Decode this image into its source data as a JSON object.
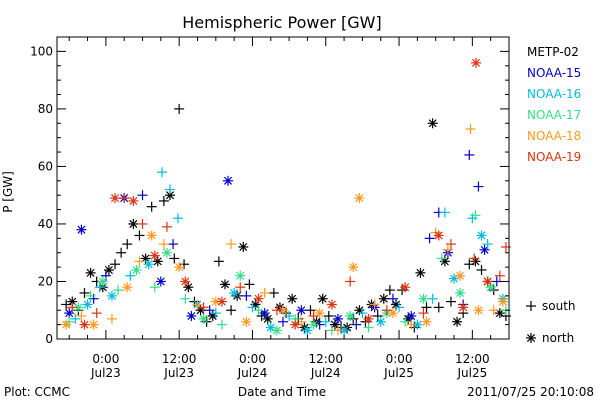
{
  "chart_data": {
    "type": "scatter",
    "title": "Hemispheric Power [GW]",
    "xlabel": "Date and Time",
    "ylabel": "P [GW]",
    "ylim": [
      0,
      105
    ],
    "xlim_hours": [
      -8,
      66
    ],
    "yticks": [
      0,
      20,
      40,
      60,
      80,
      100
    ],
    "xticks": [
      {
        "h": 0,
        "time": "0:00",
        "date": "Jul23"
      },
      {
        "h": 12,
        "time": "12:00",
        "date": "Jul23"
      },
      {
        "h": 24,
        "time": "0:00",
        "date": "Jul24"
      },
      {
        "h": 36,
        "time": "12:00",
        "date": "Jul24"
      },
      {
        "h": 48,
        "time": "0:00",
        "date": "Jul25"
      },
      {
        "h": 60,
        "time": "12:00",
        "date": "Jul25"
      }
    ],
    "marker_legend": [
      {
        "symbol": "+",
        "label": "south"
      },
      {
        "symbol": "*",
        "label": "north"
      }
    ],
    "series": [
      {
        "name": "METP-02",
        "color": "#000000",
        "points": [
          [
            -6.5,
            12,
            "s"
          ],
          [
            -5.5,
            13,
            "n"
          ],
          [
            -4.5,
            10,
            "s"
          ],
          [
            -3.5,
            16,
            "s"
          ],
          [
            -2.5,
            23,
            "n"
          ],
          [
            -1.5,
            20,
            "s"
          ],
          [
            -0.5,
            18,
            "n"
          ],
          [
            0.5,
            24,
            "n"
          ],
          [
            1.5,
            26,
            "s"
          ],
          [
            2.5,
            30,
            "s"
          ],
          [
            3.5,
            33,
            "s"
          ],
          [
            4.5,
            40,
            "n"
          ],
          [
            5.5,
            36,
            "s"
          ],
          [
            6.5,
            28,
            "n"
          ],
          [
            7.5,
            46,
            "s"
          ],
          [
            8.5,
            27,
            "n"
          ],
          [
            9.5,
            48,
            "s"
          ],
          [
            10.5,
            50,
            "n"
          ],
          [
            11.2,
            28,
            "s"
          ],
          [
            12.0,
            80,
            "s"
          ],
          [
            12.8,
            26,
            "s"
          ],
          [
            13.5,
            18,
            "n"
          ],
          [
            14.5,
            13,
            "s"
          ],
          [
            15.5,
            10,
            "n"
          ],
          [
            16.5,
            6,
            "s"
          ],
          [
            17.5,
            8,
            "n"
          ],
          [
            18.5,
            27,
            "s"
          ],
          [
            19.5,
            19,
            "n"
          ],
          [
            20.5,
            10,
            "s"
          ],
          [
            21.5,
            15,
            "n"
          ],
          [
            22.5,
            32,
            "n"
          ],
          [
            23.5,
            19,
            "s"
          ],
          [
            24.5,
            12,
            "n"
          ],
          [
            25.5,
            8,
            "s"
          ],
          [
            26.5,
            7,
            "n"
          ],
          [
            27.5,
            16,
            "s"
          ],
          [
            28.5,
            11,
            "n"
          ],
          [
            29.5,
            9,
            "s"
          ],
          [
            30.5,
            14,
            "n"
          ],
          [
            31.5,
            7,
            "s"
          ],
          [
            32.5,
            4,
            "n"
          ],
          [
            33.5,
            10,
            "s"
          ],
          [
            34.5,
            6,
            "n"
          ],
          [
            35.5,
            14,
            "n"
          ],
          [
            36.5,
            8,
            "s"
          ],
          [
            37.5,
            5,
            "n"
          ],
          [
            38.5,
            4,
            "s"
          ],
          [
            39.5,
            4,
            "n"
          ],
          [
            40.5,
            7,
            "s"
          ],
          [
            41.5,
            10,
            "n"
          ],
          [
            42.5,
            6,
            "s"
          ],
          [
            43.5,
            12,
            "n"
          ],
          [
            44.5,
            8,
            "s"
          ],
          [
            45.5,
            14,
            "n"
          ],
          [
            46.5,
            17,
            "s"
          ],
          [
            47.5,
            12,
            "n"
          ],
          [
            48.5,
            17,
            "s"
          ],
          [
            49.5,
            7,
            "n"
          ],
          [
            50.5,
            4,
            "s"
          ],
          [
            51.5,
            23,
            "n"
          ],
          [
            52.5,
            11,
            "s"
          ],
          [
            53.5,
            75,
            "n"
          ],
          [
            54.5,
            11,
            "s"
          ],
          [
            55.5,
            27,
            "n"
          ],
          [
            56.5,
            13,
            "s"
          ],
          [
            57.5,
            6,
            "n"
          ],
          [
            58.5,
            9,
            "s"
          ],
          [
            59.5,
            26,
            "s"
          ],
          [
            60.5,
            27,
            "n"
          ],
          [
            61.5,
            24,
            "s"
          ],
          [
            62.5,
            20,
            "n"
          ],
          [
            63.5,
            17,
            "s"
          ],
          [
            64.5,
            9,
            "n"
          ],
          [
            65.5,
            8,
            "s"
          ]
        ]
      },
      {
        "name": "NOAA-15",
        "color": "#0000cc",
        "points": [
          [
            -6.0,
            9,
            "n"
          ],
          [
            -4.0,
            38,
            "n"
          ],
          [
            -2.0,
            14,
            "s"
          ],
          [
            0.0,
            22,
            "s"
          ],
          [
            3.0,
            49,
            "n"
          ],
          [
            6.0,
            50,
            "s"
          ],
          [
            9.0,
            20,
            "n"
          ],
          [
            11.0,
            33,
            "s"
          ],
          [
            14.0,
            8,
            "n"
          ],
          [
            17.0,
            10,
            "s"
          ],
          [
            20.0,
            55,
            "n"
          ],
          [
            23.0,
            15,
            "s"
          ],
          [
            26.0,
            9,
            "n"
          ],
          [
            29.0,
            6,
            "s"
          ],
          [
            32.0,
            10,
            "n"
          ],
          [
            35.0,
            5,
            "s"
          ],
          [
            38.0,
            7,
            "n"
          ],
          [
            41.0,
            5,
            "s"
          ],
          [
            44.0,
            11,
            "n"
          ],
          [
            47.0,
            14,
            "s"
          ],
          [
            50.0,
            8,
            "n"
          ],
          [
            53.0,
            35,
            "s"
          ],
          [
            54.5,
            44,
            "s"
          ],
          [
            56.0,
            30,
            "n"
          ],
          [
            58.5,
            12,
            "s"
          ],
          [
            59.5,
            64,
            "s"
          ],
          [
            61.0,
            53,
            "s"
          ],
          [
            62.0,
            31,
            "n"
          ],
          [
            64.0,
            20,
            "s"
          ]
        ]
      },
      {
        "name": "NOAA-16",
        "color": "#00bbdd",
        "points": [
          [
            -5.0,
            7,
            "s"
          ],
          [
            -3.0,
            12,
            "n"
          ],
          [
            -1.0,
            18,
            "s"
          ],
          [
            1.0,
            15,
            "n"
          ],
          [
            4.0,
            22,
            "s"
          ],
          [
            7.0,
            26,
            "n"
          ],
          [
            9.2,
            58,
            "s"
          ],
          [
            10.5,
            52,
            "s"
          ],
          [
            11.8,
            42,
            "s"
          ],
          [
            15.0,
            12,
            "n"
          ],
          [
            18.0,
            9,
            "s"
          ],
          [
            21.0,
            16,
            "n"
          ],
          [
            24.0,
            11,
            "s"
          ],
          [
            27.0,
            4,
            "n"
          ],
          [
            30.0,
            8,
            "s"
          ],
          [
            33.0,
            3,
            "n"
          ],
          [
            36.0,
            6,
            "s"
          ],
          [
            39.0,
            3,
            "n"
          ],
          [
            42.0,
            9,
            "s"
          ],
          [
            45.0,
            6,
            "n"
          ],
          [
            48.0,
            11,
            "s"
          ],
          [
            51.0,
            5,
            "n"
          ],
          [
            53.5,
            14,
            "s"
          ],
          [
            55.5,
            44,
            "s"
          ],
          [
            57.0,
            21,
            "n"
          ],
          [
            60.0,
            42,
            "s"
          ],
          [
            61.5,
            36,
            "n"
          ],
          [
            62.5,
            33,
            "s"
          ],
          [
            65.0,
            14,
            "n"
          ]
        ]
      },
      {
        "name": "NOAA-17",
        "color": "#33dd88",
        "points": [
          [
            -6.0,
            6,
            "s"
          ],
          [
            -4.5,
            11,
            "n"
          ],
          [
            -2.5,
            15,
            "s"
          ],
          [
            -0.5,
            20,
            "n"
          ],
          [
            2.0,
            17,
            "s"
          ],
          [
            5.0,
            24,
            "n"
          ],
          [
            8.0,
            18,
            "s"
          ],
          [
            10.0,
            30,
            "n"
          ],
          [
            13.0,
            14,
            "s"
          ],
          [
            16.0,
            7,
            "n"
          ],
          [
            19.0,
            5,
            "s"
          ],
          [
            22.0,
            22,
            "n"
          ],
          [
            25.0,
            10,
            "s"
          ],
          [
            28.0,
            3,
            "n"
          ],
          [
            31.0,
            7,
            "s"
          ],
          [
            34.0,
            5,
            "n"
          ],
          [
            37.0,
            3,
            "s"
          ],
          [
            40.0,
            8,
            "n"
          ],
          [
            43.0,
            4,
            "s"
          ],
          [
            46.0,
            9,
            "n"
          ],
          [
            49.0,
            6,
            "s"
          ],
          [
            52.0,
            14,
            "n"
          ],
          [
            55.0,
            28,
            "s"
          ],
          [
            58.0,
            16,
            "n"
          ],
          [
            60.5,
            43,
            "s"
          ],
          [
            63.0,
            18,
            "n"
          ],
          [
            65.5,
            10,
            "s"
          ]
        ]
      },
      {
        "name": "NOAA-18",
        "color": "#ff9922",
        "points": [
          [
            -6.5,
            5,
            "n"
          ],
          [
            -4.0,
            8,
            "s"
          ],
          [
            -2.0,
            5,
            "n"
          ],
          [
            1.0,
            7,
            "s"
          ],
          [
            3.5,
            18,
            "n"
          ],
          [
            5.5,
            27,
            "s"
          ],
          [
            7.5,
            36,
            "n"
          ],
          [
            9.5,
            33,
            "s"
          ],
          [
            12.0,
            25,
            "n"
          ],
          [
            15.0,
            12,
            "s"
          ],
          [
            18.0,
            13,
            "n"
          ],
          [
            20.5,
            33,
            "s"
          ],
          [
            23.0,
            6,
            "n"
          ],
          [
            26.0,
            16,
            "s"
          ],
          [
            29.0,
            10,
            "n"
          ],
          [
            32.0,
            6,
            "s"
          ],
          [
            35.0,
            9,
            "n"
          ],
          [
            38.0,
            3,
            "s"
          ],
          [
            40.5,
            25,
            "n"
          ],
          [
            41.5,
            49,
            "n"
          ],
          [
            44.0,
            12,
            "s"
          ],
          [
            47.0,
            9,
            "n"
          ],
          [
            50.0,
            5,
            "s"
          ],
          [
            52.5,
            6,
            "n"
          ],
          [
            54.0,
            37,
            "s"
          ],
          [
            56.0,
            31,
            "s"
          ],
          [
            58.0,
            22,
            "n"
          ],
          [
            59.7,
            73,
            "s"
          ],
          [
            61.0,
            10,
            "n"
          ],
          [
            63.5,
            10,
            "s"
          ],
          [
            65.0,
            13,
            "n"
          ]
        ]
      },
      {
        "name": "NOAA-19",
        "color": "#dd3311",
        "points": [
          [
            -5.5,
            11,
            "s"
          ],
          [
            -3.5,
            5,
            "n"
          ],
          [
            -1.5,
            9,
            "s"
          ],
          [
            1.5,
            49,
            "n"
          ],
          [
            3.0,
            49,
            "s"
          ],
          [
            4.5,
            48,
            "n"
          ],
          [
            6.0,
            40,
            "s"
          ],
          [
            8.0,
            29,
            "n"
          ],
          [
            10.0,
            39,
            "s"
          ],
          [
            13.0,
            20,
            "n"
          ],
          [
            16.0,
            11,
            "s"
          ],
          [
            19.0,
            13,
            "n"
          ],
          [
            22.0,
            18,
            "s"
          ],
          [
            25.0,
            14,
            "n"
          ],
          [
            28.0,
            10,
            "s"
          ],
          [
            31.0,
            5,
            "n"
          ],
          [
            34.0,
            8,
            "s"
          ],
          [
            37.0,
            12,
            "n"
          ],
          [
            40.0,
            20,
            "s"
          ],
          [
            43.0,
            7,
            "n"
          ],
          [
            46.0,
            10,
            "s"
          ],
          [
            49.0,
            18,
            "n"
          ],
          [
            52.0,
            9,
            "s"
          ],
          [
            54.5,
            36,
            "n"
          ],
          [
            56.5,
            33,
            "s"
          ],
          [
            58.5,
            11,
            "n"
          ],
          [
            60.3,
            28,
            "s"
          ],
          [
            60.6,
            96,
            "n"
          ],
          [
            62.5,
            20,
            "n"
          ],
          [
            64.5,
            22,
            "s"
          ],
          [
            65.5,
            32,
            "s"
          ]
        ]
      }
    ]
  },
  "footer": {
    "left": "Plot: CCMC",
    "right": "2011/07/25 20:10:08"
  }
}
